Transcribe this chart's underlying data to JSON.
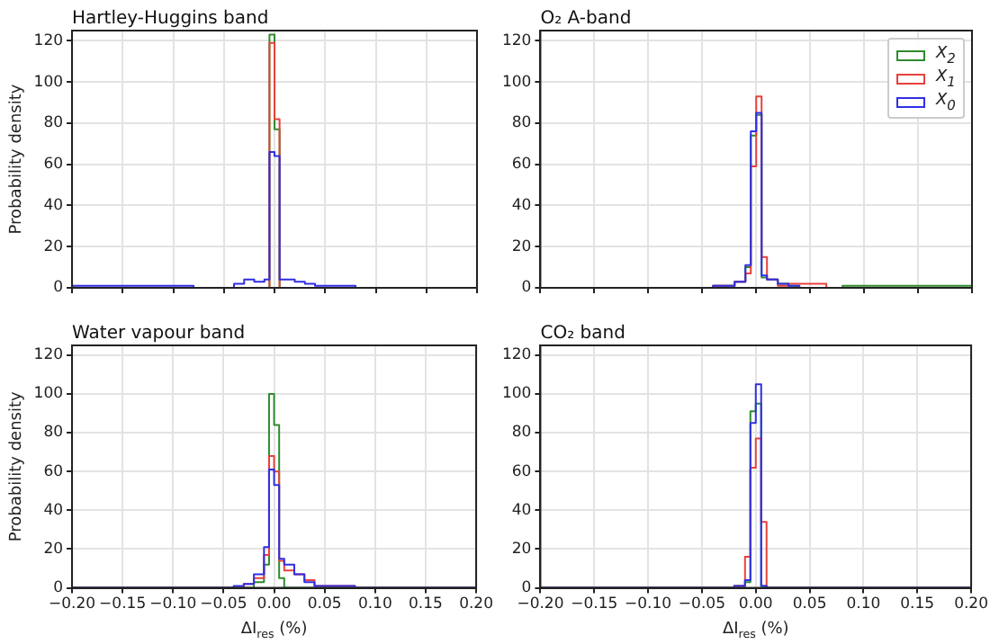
{
  "chart_data": [
    {
      "type": "histogram",
      "title": "Hartley-Huggins band",
      "ylabel": "Probability density",
      "bins": [
        -0.2,
        -0.195,
        -0.19,
        -0.185,
        -0.18,
        -0.175,
        -0.17,
        -0.165,
        -0.16,
        -0.155,
        -0.15,
        -0.145,
        -0.14,
        -0.135,
        -0.13,
        -0.125,
        -0.12,
        -0.115,
        -0.11,
        -0.105,
        -0.1,
        -0.095,
        -0.09,
        -0.085,
        -0.08,
        -0.075,
        -0.07,
        -0.065,
        -0.06,
        -0.055,
        -0.05,
        -0.045,
        -0.04,
        -0.035,
        -0.03,
        -0.025,
        -0.02,
        -0.015,
        -0.01,
        -0.005,
        0,
        0.005,
        0.01,
        0.015,
        0.02,
        0.025,
        0.03,
        0.035,
        0.04,
        0.045,
        0.05,
        0.055,
        0.06,
        0.065,
        0.07,
        0.075,
        0.08,
        0.085,
        0.09,
        0.095,
        0.1,
        0.105,
        0.11,
        0.115,
        0.12,
        0.125,
        0.13,
        0.135,
        0.14,
        0.145,
        0.15,
        0.155,
        0.16,
        0.165,
        0.17,
        0.175,
        0.18,
        0.185,
        0.19,
        0.195,
        0.2
      ],
      "series": [
        {
          "color": "#2e8b2e",
          "values": [
            0,
            0,
            0,
            0,
            0,
            0,
            0,
            0,
            0,
            0,
            0,
            0,
            0,
            0,
            0,
            0,
            0,
            0,
            0,
            0,
            0,
            0,
            0,
            0,
            0,
            0,
            0,
            0,
            0,
            0,
            0,
            0,
            0,
            0,
            0,
            0,
            0,
            0,
            0,
            123,
            77,
            0,
            0,
            0,
            0,
            0,
            0,
            0,
            0,
            0,
            0,
            0,
            0,
            0,
            0,
            0,
            0,
            0,
            0,
            0,
            0,
            0,
            0,
            0,
            0,
            0,
            0,
            0,
            0,
            0,
            0,
            0,
            0,
            0,
            0,
            0,
            0,
            0,
            0,
            0
          ]
        },
        {
          "color": "#e8413c",
          "values": [
            0,
            0,
            0,
            0,
            0,
            0,
            0,
            0,
            0,
            0,
            0,
            0,
            0,
            0,
            0,
            0,
            0,
            0,
            0,
            0,
            0,
            0,
            0,
            0,
            0,
            0,
            0,
            0,
            0,
            0,
            0,
            0,
            0,
            0,
            0,
            0,
            0,
            0,
            0,
            119,
            82,
            0,
            0,
            0,
            0,
            0,
            0,
            0,
            0,
            0,
            0,
            0,
            0,
            0,
            0,
            0,
            0,
            0,
            0,
            0,
            0,
            0,
            0,
            0,
            0,
            0,
            0,
            0,
            0,
            0,
            0,
            0,
            0,
            0,
            0,
            0,
            0,
            0,
            0,
            0
          ]
        },
        {
          "color": "#2f2fe6",
          "values": [
            1,
            1,
            1,
            1,
            1,
            1,
            1,
            1,
            1,
            1,
            1,
            1,
            1,
            1,
            1,
            1,
            1,
            1,
            1,
            1,
            1,
            1,
            1,
            1,
            0,
            0,
            0,
            0,
            0,
            0,
            0,
            0,
            2,
            2,
            4,
            4,
            3,
            3,
            4,
            66,
            64,
            4,
            4,
            4,
            3,
            3,
            2,
            2,
            1,
            1,
            1,
            1,
            1,
            1,
            1,
            1,
            0,
            0,
            0,
            0,
            0,
            0,
            0,
            0,
            0,
            0,
            0,
            0,
            0,
            0,
            0,
            0,
            0,
            0,
            0,
            0,
            0,
            0,
            0,
            0
          ]
        }
      ],
      "xlim": [
        -0.2,
        0.2
      ],
      "ylim": [
        0,
        125
      ],
      "xticks": [
        {
          "value": -0.2,
          "label": null
        },
        {
          "value": -0.15,
          "label": null
        },
        {
          "value": -0.1,
          "label": null
        },
        {
          "value": -0.05,
          "label": null
        },
        {
          "value": 0,
          "label": null
        },
        {
          "value": 0.05,
          "label": null
        },
        {
          "value": 0.1,
          "label": null
        },
        {
          "value": 0.15,
          "label": null
        },
        {
          "value": 0.2,
          "label": null
        }
      ],
      "yticks": [
        0,
        20,
        40,
        60,
        80,
        100,
        120
      ],
      "grid": true,
      "tick_labels": "y"
    },
    {
      "type": "histogram",
      "title": "O₂ A-band",
      "bins": [
        -0.2,
        -0.195,
        -0.19,
        -0.185,
        -0.18,
        -0.175,
        -0.17,
        -0.165,
        -0.16,
        -0.155,
        -0.15,
        -0.145,
        -0.14,
        -0.135,
        -0.13,
        -0.125,
        -0.12,
        -0.115,
        -0.11,
        -0.105,
        -0.1,
        -0.095,
        -0.09,
        -0.085,
        -0.08,
        -0.075,
        -0.07,
        -0.065,
        -0.06,
        -0.055,
        -0.05,
        -0.045,
        -0.04,
        -0.035,
        -0.03,
        -0.025,
        -0.02,
        -0.015,
        -0.01,
        -0.005,
        0,
        0.005,
        0.01,
        0.015,
        0.02,
        0.025,
        0.03,
        0.035,
        0.04,
        0.045,
        0.05,
        0.055,
        0.06,
        0.065,
        0.07,
        0.075,
        0.08,
        0.085,
        0.09,
        0.095,
        0.1,
        0.105,
        0.11,
        0.115,
        0.12,
        0.125,
        0.13,
        0.135,
        0.14,
        0.145,
        0.15,
        0.155,
        0.16,
        0.165,
        0.17,
        0.175,
        0.18,
        0.185,
        0.19,
        0.195,
        0.2
      ],
      "series": [
        {
          "name": "X$_{2}$",
          "color": "#2e8b2e",
          "values": [
            0,
            0,
            0,
            0,
            0,
            0,
            0,
            0,
            0,
            0,
            0,
            0,
            0,
            0,
            0,
            0,
            0,
            0,
            0,
            0,
            0,
            0,
            0,
            0,
            0,
            0,
            0,
            0,
            0,
            0,
            0,
            0,
            1,
            1,
            1,
            1,
            3,
            3,
            10,
            74,
            84,
            5,
            4,
            4,
            2,
            2,
            1,
            1,
            0,
            0,
            0,
            0,
            0,
            0,
            0,
            0,
            1,
            1,
            1,
            1,
            1,
            1,
            1,
            1,
            1,
            1,
            1,
            1,
            1,
            1,
            1,
            1,
            1,
            1,
            1,
            1,
            1,
            1,
            1,
            1
          ]
        },
        {
          "name": "X$_{1}$",
          "color": "#e8413c",
          "values": [
            0,
            0,
            0,
            0,
            0,
            0,
            0,
            0,
            0,
            0,
            0,
            0,
            0,
            0,
            0,
            0,
            0,
            0,
            0,
            0,
            0,
            0,
            0,
            0,
            0,
            0,
            0,
            0,
            0,
            0,
            0,
            0,
            1,
            1,
            1,
            1,
            3,
            3,
            7,
            59,
            93,
            15,
            4,
            4,
            1,
            1,
            2,
            2,
            2,
            2,
            2,
            2,
            2,
            0,
            0,
            0,
            0,
            0,
            0,
            0,
            0,
            0,
            0,
            0,
            0,
            0,
            0,
            0,
            0,
            0,
            0,
            0,
            0,
            0,
            0,
            0,
            0,
            0,
            0,
            0
          ]
        },
        {
          "name": "X$_{0}$",
          "color": "#2f2fe6",
          "values": [
            0,
            0,
            0,
            0,
            0,
            0,
            0,
            0,
            0,
            0,
            0,
            0,
            0,
            0,
            0,
            0,
            0,
            0,
            0,
            0,
            0,
            0,
            0,
            0,
            0,
            0,
            0,
            0,
            0,
            0,
            0,
            0,
            1,
            1,
            1,
            1,
            3,
            3,
            11,
            76,
            85,
            6,
            4,
            4,
            2,
            2,
            1,
            1,
            0,
            0,
            0,
            0,
            0,
            0,
            0,
            0,
            0,
            0,
            0,
            0,
            0,
            0,
            0,
            0,
            0,
            0,
            0,
            0,
            0,
            0,
            0,
            0,
            0,
            0,
            0,
            0,
            0,
            0,
            0,
            0
          ]
        }
      ],
      "xlim": [
        -0.2,
        0.2
      ],
      "ylim": [
        0,
        125
      ],
      "xticks": [
        {
          "value": -0.2,
          "label": null
        },
        {
          "value": -0.15,
          "label": null
        },
        {
          "value": -0.1,
          "label": null
        },
        {
          "value": -0.05,
          "label": null
        },
        {
          "value": 0,
          "label": null
        },
        {
          "value": 0.05,
          "label": null
        },
        {
          "value": 0.1,
          "label": null
        },
        {
          "value": 0.15,
          "label": null
        },
        {
          "value": 0.2,
          "label": null
        }
      ],
      "yticks": [
        0,
        20,
        40,
        60,
        80,
        100,
        120
      ],
      "grid": true,
      "legend": "top right",
      "tick_labels": "y"
    },
    {
      "type": "histogram",
      "title": "Water vapour band",
      "xlabel": "ΔI$_{res}$ (%)",
      "ylabel": "Probability density",
      "bins": [
        -0.2,
        -0.195,
        -0.19,
        -0.185,
        -0.18,
        -0.175,
        -0.17,
        -0.165,
        -0.16,
        -0.155,
        -0.15,
        -0.145,
        -0.14,
        -0.135,
        -0.13,
        -0.125,
        -0.12,
        -0.115,
        -0.11,
        -0.105,
        -0.1,
        -0.095,
        -0.09,
        -0.085,
        -0.08,
        -0.075,
        -0.07,
        -0.065,
        -0.06,
        -0.055,
        -0.05,
        -0.045,
        -0.04,
        -0.035,
        -0.03,
        -0.025,
        -0.02,
        -0.015,
        -0.01,
        -0.005,
        0,
        0.005,
        0.01,
        0.015,
        0.02,
        0.025,
        0.03,
        0.035,
        0.04,
        0.045,
        0.05,
        0.055,
        0.06,
        0.065,
        0.07,
        0.075,
        0.08,
        0.085,
        0.09,
        0.095,
        0.1,
        0.105,
        0.11,
        0.115,
        0.12,
        0.125,
        0.13,
        0.135,
        0.14,
        0.145,
        0.15,
        0.155,
        0.16,
        0.165,
        0.17,
        0.175,
        0.18,
        0.185,
        0.19,
        0.195,
        0.2
      ],
      "series": [
        {
          "color": "#2e8b2e",
          "values": [
            0,
            0,
            0,
            0,
            0,
            0,
            0,
            0,
            0,
            0,
            0,
            0,
            0,
            0,
            0,
            0,
            0,
            0,
            0,
            0,
            0,
            0,
            0,
            0,
            0,
            0,
            0,
            0,
            0,
            0,
            0,
            0,
            0,
            0,
            0,
            0,
            3,
            3,
            12,
            100,
            84,
            5,
            0,
            0,
            0,
            0,
            0,
            0,
            0,
            0,
            0,
            0,
            0,
            0,
            0,
            0,
            0,
            0,
            0,
            0,
            0,
            0,
            0,
            0,
            0,
            0,
            0,
            0,
            0,
            0,
            0,
            0,
            0,
            0,
            0,
            0,
            0,
            0,
            0,
            0
          ]
        },
        {
          "color": "#e8413c",
          "values": [
            0,
            0,
            0,
            0,
            0,
            0,
            0,
            0,
            0,
            0,
            0,
            0,
            0,
            0,
            0,
            0,
            0,
            0,
            0,
            0,
            0,
            0,
            0,
            0,
            0,
            0,
            0,
            0,
            0,
            0,
            0,
            0,
            0,
            0,
            2,
            2,
            5,
            5,
            17,
            68,
            60,
            14,
            9,
            9,
            7,
            7,
            4,
            4,
            1,
            1,
            1,
            1,
            1,
            1,
            1,
            1,
            0,
            0,
            0,
            0,
            0,
            0,
            0,
            0,
            0,
            0,
            0,
            0,
            0,
            0,
            0,
            0,
            0,
            0,
            0,
            0,
            0,
            0,
            0,
            0
          ]
        },
        {
          "color": "#2f2fe6",
          "values": [
            0,
            0,
            0,
            0,
            0,
            0,
            0,
            0,
            0,
            0,
            0,
            0,
            0,
            0,
            0,
            0,
            0,
            0,
            0,
            0,
            0,
            0,
            0,
            0,
            0,
            0,
            0,
            0,
            0,
            0,
            0,
            0,
            1,
            1,
            2,
            2,
            7,
            7,
            21,
            61,
            53,
            15,
            12,
            12,
            7,
            7,
            3,
            3,
            1,
            1,
            1,
            1,
            1,
            1,
            1,
            1,
            0,
            0,
            0,
            0,
            0,
            0,
            0,
            0,
            0,
            0,
            0,
            0,
            0,
            0,
            0,
            0,
            0,
            0,
            0,
            0,
            0,
            0,
            0,
            0
          ]
        }
      ],
      "xlim": [
        -0.2,
        0.2
      ],
      "ylim": [
        0,
        125
      ],
      "xticks": [
        {
          "value": -0.2,
          "label": "−0.20"
        },
        {
          "value": -0.15,
          "label": "−0.15"
        },
        {
          "value": -0.1,
          "label": "−0.10"
        },
        {
          "value": -0.05,
          "label": "−0.05"
        },
        {
          "value": 0,
          "label": "0.00"
        },
        {
          "value": 0.05,
          "label": "0.05"
        },
        {
          "value": 0.1,
          "label": "0.10"
        },
        {
          "value": 0.15,
          "label": "0.15"
        },
        {
          "value": 0.2,
          "label": "0.20"
        }
      ],
      "yticks": [
        0,
        20,
        40,
        60,
        80,
        100,
        120
      ],
      "grid": true
    },
    {
      "type": "histogram",
      "title": "CO₂ band",
      "xlabel": "ΔI$_{res}$ (%)",
      "bins": [
        -0.2,
        -0.195,
        -0.19,
        -0.185,
        -0.18,
        -0.175,
        -0.17,
        -0.165,
        -0.16,
        -0.155,
        -0.15,
        -0.145,
        -0.14,
        -0.135,
        -0.13,
        -0.125,
        -0.12,
        -0.115,
        -0.11,
        -0.105,
        -0.1,
        -0.095,
        -0.09,
        -0.085,
        -0.08,
        -0.075,
        -0.07,
        -0.065,
        -0.06,
        -0.055,
        -0.05,
        -0.045,
        -0.04,
        -0.035,
        -0.03,
        -0.025,
        -0.02,
        -0.015,
        -0.01,
        -0.005,
        0,
        0.005,
        0.01,
        0.015,
        0.02,
        0.025,
        0.03,
        0.035,
        0.04,
        0.045,
        0.05,
        0.055,
        0.06,
        0.065,
        0.07,
        0.075,
        0.08,
        0.085,
        0.09,
        0.095,
        0.1,
        0.105,
        0.11,
        0.115,
        0.12,
        0.125,
        0.13,
        0.135,
        0.14,
        0.145,
        0.15,
        0.155,
        0.16,
        0.165,
        0.17,
        0.175,
        0.18,
        0.185,
        0.19,
        0.195,
        0.2
      ],
      "series": [
        {
          "color": "#2e8b2e",
          "values": [
            0,
            0,
            0,
            0,
            0,
            0,
            0,
            0,
            0,
            0,
            0,
            0,
            0,
            0,
            0,
            0,
            0,
            0,
            0,
            0,
            0,
            0,
            0,
            0,
            0,
            0,
            0,
            0,
            0,
            0,
            0,
            0,
            0,
            0,
            0,
            0,
            1,
            1,
            3,
            91,
            95,
            1,
            0,
            0,
            0,
            0,
            0,
            0,
            0,
            0,
            0,
            0,
            0,
            0,
            0,
            0,
            0,
            0,
            0,
            0,
            0,
            0,
            0,
            0,
            0,
            0,
            0,
            0,
            0,
            0,
            0,
            0,
            0,
            0,
            0,
            0,
            0,
            0,
            0,
            0
          ]
        },
        {
          "color": "#e8413c",
          "values": [
            0,
            0,
            0,
            0,
            0,
            0,
            0,
            0,
            0,
            0,
            0,
            0,
            0,
            0,
            0,
            0,
            0,
            0,
            0,
            0,
            0,
            0,
            0,
            0,
            0,
            0,
            0,
            0,
            0,
            0,
            0,
            0,
            0,
            0,
            0,
            0,
            1,
            1,
            16,
            62,
            77,
            34,
            0,
            0,
            0,
            0,
            0,
            0,
            0,
            0,
            0,
            0,
            0,
            0,
            0,
            0,
            0,
            0,
            0,
            0,
            0,
            0,
            0,
            0,
            0,
            0,
            0,
            0,
            0,
            0,
            0,
            0,
            0,
            0,
            0,
            0,
            0,
            0,
            0,
            0
          ]
        },
        {
          "color": "#2f2fe6",
          "values": [
            0,
            0,
            0,
            0,
            0,
            0,
            0,
            0,
            0,
            0,
            0,
            0,
            0,
            0,
            0,
            0,
            0,
            0,
            0,
            0,
            0,
            0,
            0,
            0,
            0,
            0,
            0,
            0,
            0,
            0,
            0,
            0,
            0,
            0,
            0,
            0,
            1,
            1,
            4,
            85,
            105,
            1,
            0,
            0,
            0,
            0,
            0,
            0,
            0,
            0,
            0,
            0,
            0,
            0,
            0,
            0,
            0,
            0,
            0,
            0,
            0,
            0,
            0,
            0,
            0,
            0,
            0,
            0,
            0,
            0,
            0,
            0,
            0,
            0,
            0,
            0,
            0,
            0,
            0,
            0
          ]
        }
      ],
      "xlim": [
        -0.2,
        0.2
      ],
      "ylim": [
        0,
        125
      ],
      "xticks": [
        {
          "value": -0.2,
          "label": "−0.20"
        },
        {
          "value": -0.15,
          "label": "−0.15"
        },
        {
          "value": -0.1,
          "label": "−0.10"
        },
        {
          "value": -0.05,
          "label": "−0.05"
        },
        {
          "value": 0,
          "label": "0.00"
        },
        {
          "value": 0.05,
          "label": "0.05"
        },
        {
          "value": 0.1,
          "label": "0.10"
        },
        {
          "value": 0.15,
          "label": "0.15"
        },
        {
          "value": 0.2,
          "label": "0.20"
        }
      ],
      "yticks": [
        0,
        20,
        40,
        60,
        80,
        100,
        120
      ],
      "grid": true
    }
  ]
}
